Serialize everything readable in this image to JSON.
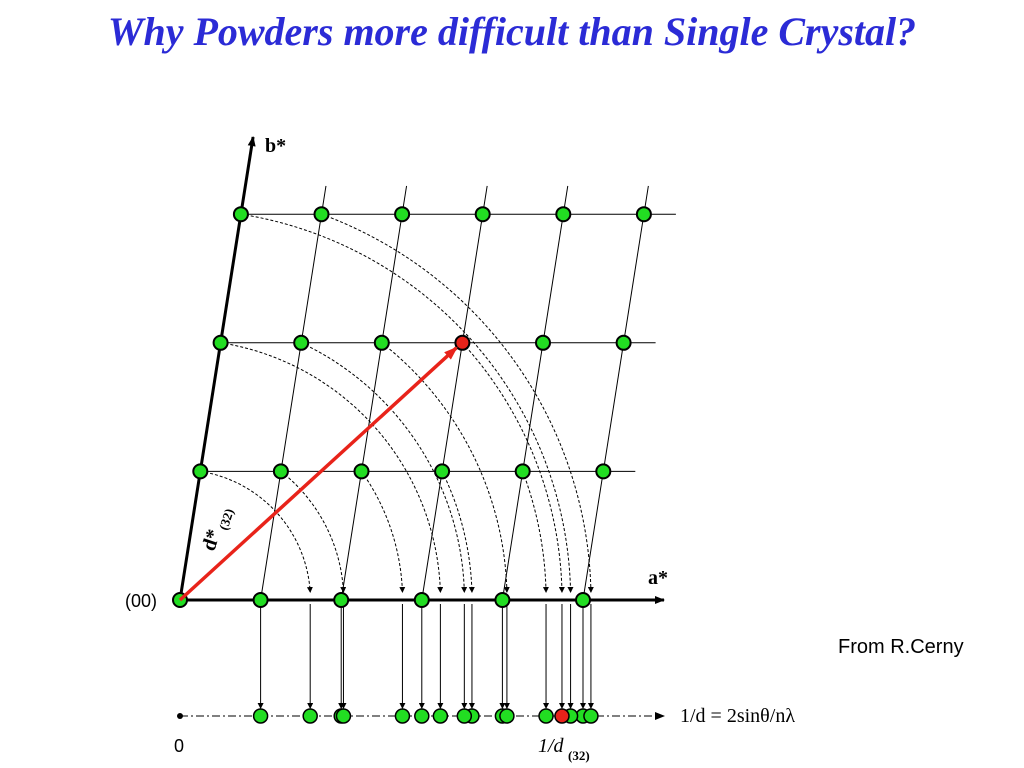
{
  "header": {
    "title": "Why Powders more difficult than Single Crystal?"
  },
  "diagram": {
    "b_star": "b*",
    "a_star": "a*",
    "origin": "(00)",
    "d_star": "d*",
    "d_star_index": "(32)",
    "axis_formula": "1/d = 2sinθ/nλ",
    "zero": "0",
    "d_label": "1/d",
    "d_label_index": "(32)"
  },
  "credit": "From R.Cerny"
}
